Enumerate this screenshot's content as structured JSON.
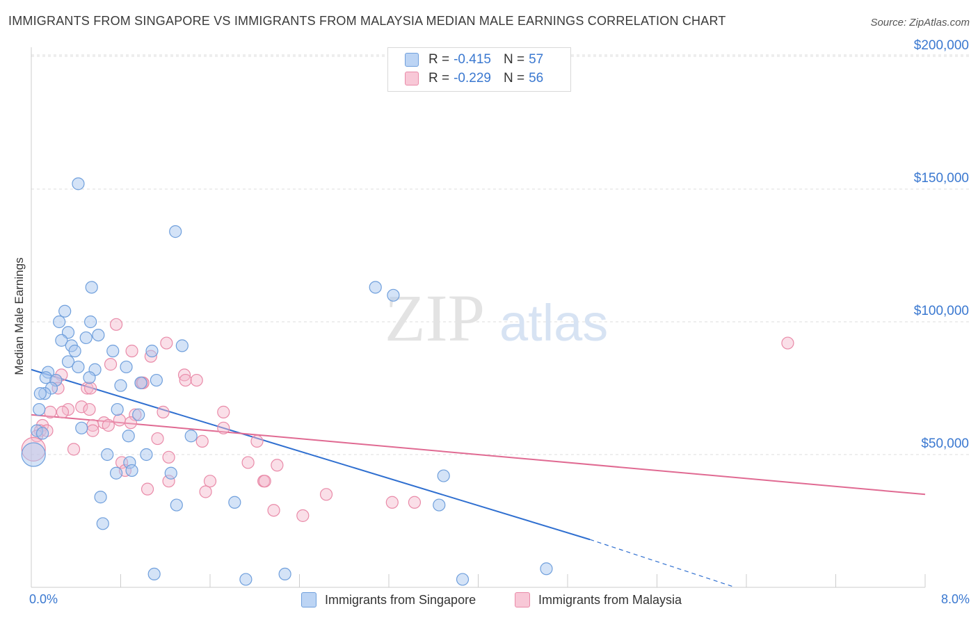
{
  "title": "IMMIGRANTS FROM SINGAPORE VS IMMIGRANTS FROM MALAYSIA MEDIAN MALE EARNINGS CORRELATION CHART",
  "source": "Source: ZipAtlas.com",
  "watermark": {
    "part1": "ZIP",
    "part2": "atlas"
  },
  "colors": {
    "singapore_fill": "#a9c8f0",
    "singapore_stroke": "#6f9fdc",
    "singapore_line": "#2f6fd0",
    "malaysia_fill": "#f5b8cb",
    "malaysia_stroke": "#e98aa8",
    "malaysia_line": "#e06a92",
    "value_text": "#3a78d0",
    "grid": "#dddddd"
  },
  "legend": {
    "rows": [
      {
        "r_label": "R = ",
        "r_value": "-0.415",
        "n_label": "N = ",
        "n_value": "57"
      },
      {
        "r_label": "R = ",
        "r_value": "-0.229",
        "n_label": "N = ",
        "n_value": "56"
      }
    ]
  },
  "bottom_legend": {
    "singapore": "Immigrants from Singapore",
    "malaysia": "Immigrants from Malaysia"
  },
  "chart_data": {
    "type": "scatter",
    "title": "IMMIGRANTS FROM SINGAPORE VS IMMIGRANTS FROM MALAYSIA MEDIAN MALE EARNINGS CORRELATION CHART",
    "xlabel": "",
    "ylabel": "Median Male Earnings",
    "xlim": [
      0,
      8
    ],
    "ylim": [
      0,
      210000
    ],
    "x_unit": "%",
    "x_tick_labels": [
      "0.0%",
      "8.0%"
    ],
    "y_ticks": [
      50000,
      100000,
      150000,
      200000
    ],
    "y_tick_labels": [
      "$50,000",
      "$100,000",
      "$150,000",
      "$200,000"
    ],
    "grid": true,
    "legend_position": "top-center",
    "series": [
      {
        "name": "Immigrants from Singapore",
        "r": -0.415,
        "n": 57,
        "trend": {
          "x": [
            0.0,
            5.0
          ],
          "y": [
            82000,
            18000
          ],
          "dashed_to": [
            6.3,
            0
          ]
        },
        "points": [
          [
            0.42,
            152000
          ],
          [
            1.29,
            134000
          ],
          [
            3.08,
            113000
          ],
          [
            3.24,
            110000
          ],
          [
            0.54,
            113000
          ],
          [
            0.3,
            104000
          ],
          [
            0.25,
            100000
          ],
          [
            0.53,
            100000
          ],
          [
            0.33,
            96000
          ],
          [
            0.6,
            95000
          ],
          [
            0.49,
            94000
          ],
          [
            0.27,
            93000
          ],
          [
            0.36,
            91000
          ],
          [
            1.35,
            91000
          ],
          [
            0.39,
            89000
          ],
          [
            0.73,
            89000
          ],
          [
            1.08,
            89000
          ],
          [
            0.33,
            85000
          ],
          [
            0.42,
            83000
          ],
          [
            0.57,
            82000
          ],
          [
            0.85,
            83000
          ],
          [
            0.15,
            81000
          ],
          [
            0.52,
            79000
          ],
          [
            0.13,
            79000
          ],
          [
            0.22,
            78000
          ],
          [
            1.12,
            78000
          ],
          [
            0.8,
            76000
          ],
          [
            0.98,
            77000
          ],
          [
            0.18,
            75000
          ],
          [
            0.12,
            73000
          ],
          [
            0.08,
            73000
          ],
          [
            0.07,
            67000
          ],
          [
            0.77,
            67000
          ],
          [
            0.96,
            65000
          ],
          [
            0.45,
            60000
          ],
          [
            0.05,
            59000
          ],
          [
            0.1,
            58000
          ],
          [
            0.87,
            57000
          ],
          [
            1.43,
            57000
          ],
          [
            0.68,
            50000
          ],
          [
            1.03,
            50000
          ],
          [
            0.88,
            47000
          ],
          [
            0.76,
            43000
          ],
          [
            0.9,
            44000
          ],
          [
            1.25,
            43000
          ],
          [
            3.69,
            42000
          ],
          [
            0.62,
            34000
          ],
          [
            1.3,
            31000
          ],
          [
            1.82,
            32000
          ],
          [
            3.65,
            31000
          ],
          [
            0.64,
            24000
          ],
          [
            4.61,
            7000
          ],
          [
            1.1,
            5000
          ],
          [
            2.27,
            5000
          ],
          [
            1.92,
            3000
          ],
          [
            3.86,
            3000
          ],
          [
            0.02,
            50000
          ]
        ]
      },
      {
        "name": "Immigrants from Malaysia",
        "r": -0.229,
        "n": 56,
        "trend": {
          "x": [
            0.0,
            8.0
          ],
          "y": [
            65000,
            35000
          ]
        },
        "points": [
          [
            0.76,
            99000
          ],
          [
            1.21,
            92000
          ],
          [
            6.77,
            92000
          ],
          [
            0.9,
            89000
          ],
          [
            1.07,
            87000
          ],
          [
            0.71,
            84000
          ],
          [
            0.27,
            80000
          ],
          [
            1.37,
            80000
          ],
          [
            0.22,
            78000
          ],
          [
            1.38,
            78000
          ],
          [
            1.48,
            78000
          ],
          [
            0.99,
            77000
          ],
          [
            1.0,
            77000
          ],
          [
            0.24,
            75000
          ],
          [
            0.5,
            75000
          ],
          [
            0.53,
            75000
          ],
          [
            0.33,
            67000
          ],
          [
            0.45,
            68000
          ],
          [
            0.52,
            67000
          ],
          [
            0.17,
            66000
          ],
          [
            0.28,
            66000
          ],
          [
            1.18,
            66000
          ],
          [
            1.72,
            66000
          ],
          [
            0.93,
            65000
          ],
          [
            0.79,
            63000
          ],
          [
            0.65,
            62000
          ],
          [
            0.69,
            61000
          ],
          [
            0.55,
            61000
          ],
          [
            0.89,
            62000
          ],
          [
            0.1,
            61000
          ],
          [
            1.72,
            60000
          ],
          [
            0.08,
            59000
          ],
          [
            0.14,
            59000
          ],
          [
            0.55,
            59000
          ],
          [
            0.05,
            57000
          ],
          [
            1.13,
            56000
          ],
          [
            1.53,
            55000
          ],
          [
            2.02,
            55000
          ],
          [
            0.38,
            52000
          ],
          [
            1.23,
            49000
          ],
          [
            0.81,
            47000
          ],
          [
            1.94,
            47000
          ],
          [
            2.2,
            46000
          ],
          [
            0.84,
            44000
          ],
          [
            1.6,
            40000
          ],
          [
            1.23,
            40000
          ],
          [
            2.08,
            40000
          ],
          [
            2.09,
            40000
          ],
          [
            1.04,
            37000
          ],
          [
            1.56,
            36000
          ],
          [
            2.64,
            35000
          ],
          [
            3.23,
            32000
          ],
          [
            3.43,
            32000
          ],
          [
            2.17,
            29000
          ],
          [
            2.43,
            27000
          ],
          [
            0.02,
            52000
          ]
        ]
      }
    ]
  }
}
